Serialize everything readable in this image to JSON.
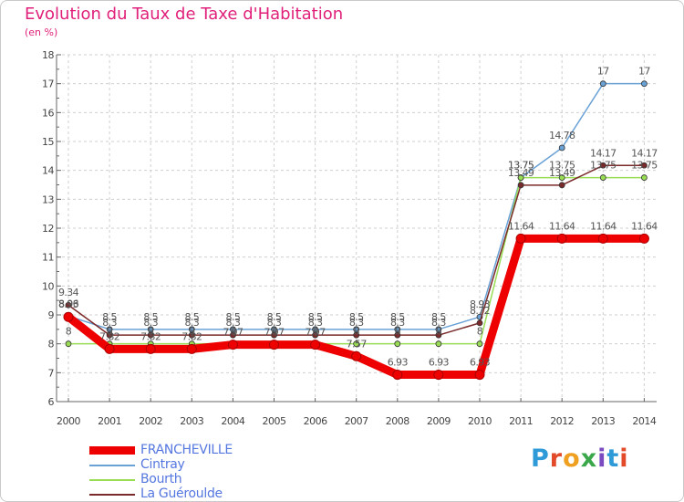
{
  "chart_data": {
    "type": "line",
    "title": "Evolution du Taux de Taxe d'Habitation",
    "subtitle": "(en %)",
    "x": [
      "2000",
      "2001",
      "2002",
      "2003",
      "2004",
      "2005",
      "2006",
      "2007",
      "2008",
      "2009",
      "2010",
      "2011",
      "2012",
      "2013",
      "2014"
    ],
    "ylim": [
      6,
      18
    ],
    "yticks": [
      6,
      7,
      8,
      9,
      10,
      11,
      12,
      13,
      14,
      15,
      16,
      17,
      18
    ],
    "grid": "dashed",
    "legend_position": "bottom-left",
    "series": [
      {
        "name": "FRANCHEVILLE",
        "color": "#ee0000",
        "values": [
          8.93,
          7.82,
          7.82,
          7.82,
          7.97,
          7.97,
          7.97,
          7.57,
          6.93,
          6.93,
          6.93,
          11.64,
          11.64,
          11.64,
          11.64
        ],
        "labels": [
          "8.93",
          "7.82",
          "7.82",
          "7.82",
          "7.97",
          "7.97",
          "7.97",
          "7.57",
          "6.93",
          "6.93",
          "6.93",
          "11.64",
          "11.64",
          "11.64",
          "11.64"
        ]
      },
      {
        "name": "Cintray",
        "color": "#6aa2d6",
        "values": [
          8.96,
          8.5,
          8.5,
          8.5,
          8.5,
          8.5,
          8.5,
          8.5,
          8.5,
          8.5,
          8.93,
          13.75,
          14.78,
          17,
          17
        ],
        "labels": [
          "8.96",
          "8.5",
          "8.5",
          "8.5",
          "8.5",
          "8.5",
          "8.5",
          "8.5",
          "8.5",
          "8.5",
          "8.93",
          "13.75",
          "14.78",
          "17",
          "17"
        ]
      },
      {
        "name": "Bourth",
        "color": "#99dd55",
        "values": [
          8,
          8,
          8,
          8,
          8,
          8,
          8,
          8,
          8,
          8,
          8,
          13.75,
          13.75,
          13.75,
          13.75
        ],
        "labels": [
          "8",
          "8",
          "8",
          "8",
          "8",
          "8",
          "8",
          "8",
          "8",
          "8",
          "8",
          "13.75",
          "13.75",
          "13.75",
          "13.75"
        ]
      },
      {
        "name": "La Guéroulde",
        "color": "#7a2a2a",
        "values": [
          9.34,
          8.3,
          8.3,
          8.3,
          8.3,
          8.3,
          8.3,
          8.3,
          8.3,
          8.3,
          8.72,
          13.49,
          13.49,
          14.17,
          14.17
        ],
        "labels": [
          "9.34",
          "8.3",
          "8.3",
          "8.3",
          "8.3",
          "8.3",
          "8.3",
          "8.3",
          "8.3",
          "8.3",
          "8.72",
          "13.49",
          "13.49",
          "14.17",
          "14.17"
        ]
      }
    ]
  },
  "legend": {
    "items": [
      "FRANCHEVILLE",
      "Cintray",
      "Bourth",
      "La Guéroulde"
    ]
  },
  "logo": {
    "text": "Proxiti",
    "colors": [
      "#2f9ad8",
      "#e24a2a",
      "#f0a020",
      "#3aa84a",
      "#7a4ac0",
      "#2f9ad8",
      "#e24a2a"
    ]
  }
}
